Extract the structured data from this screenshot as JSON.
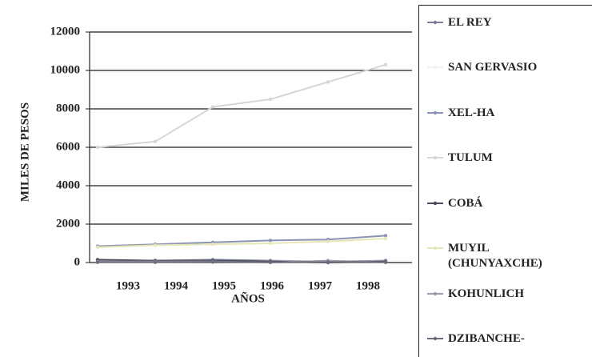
{
  "chart_data": {
    "type": "line",
    "y_label": "MILES DE PESOS",
    "x_label": "AÑOS",
    "categories": [
      "1993",
      "1994",
      "1995",
      "1996",
      "1997",
      "1998"
    ],
    "series": [
      {
        "name": "EL REY",
        "color": "#7a7f9a",
        "values": [
          100,
          100,
          150,
          100,
          50,
          100
        ]
      },
      {
        "name": "SAN GERVASIO",
        "color": "#f2f2f2",
        "values": [
          50,
          50,
          50,
          50,
          50,
          50
        ]
      },
      {
        "name": "XEL-HA",
        "color": "#8a93b4",
        "values": [
          850,
          950,
          1050,
          1150,
          1200,
          1400
        ]
      },
      {
        "name": "TULUM",
        "color": "#d6d6d6",
        "values": [
          6000,
          6300,
          8100,
          8500,
          9400,
          10300
        ]
      },
      {
        "name": "COBÁ",
        "color": "#4a4a5a",
        "values": [
          150,
          100,
          100,
          50,
          0,
          50
        ]
      },
      {
        "name": "MUYIL (CHUNYAXCHE)",
        "color": "#e6e6b8",
        "values": [
          800,
          900,
          950,
          1000,
          1100,
          1250
        ]
      },
      {
        "name": "KOHUNLICH",
        "color": "#9a9aa8",
        "values": [
          50,
          50,
          50,
          0,
          100,
          0
        ]
      },
      {
        "name": "DZIBANCHE-",
        "color": "#6a6a7a",
        "values": [
          20,
          20,
          30,
          20,
          20,
          30
        ]
      }
    ],
    "ylim": [
      0,
      12000
    ],
    "yticks": [
      0,
      2000,
      4000,
      6000,
      8000,
      10000,
      12000
    ],
    "grid": true
  }
}
